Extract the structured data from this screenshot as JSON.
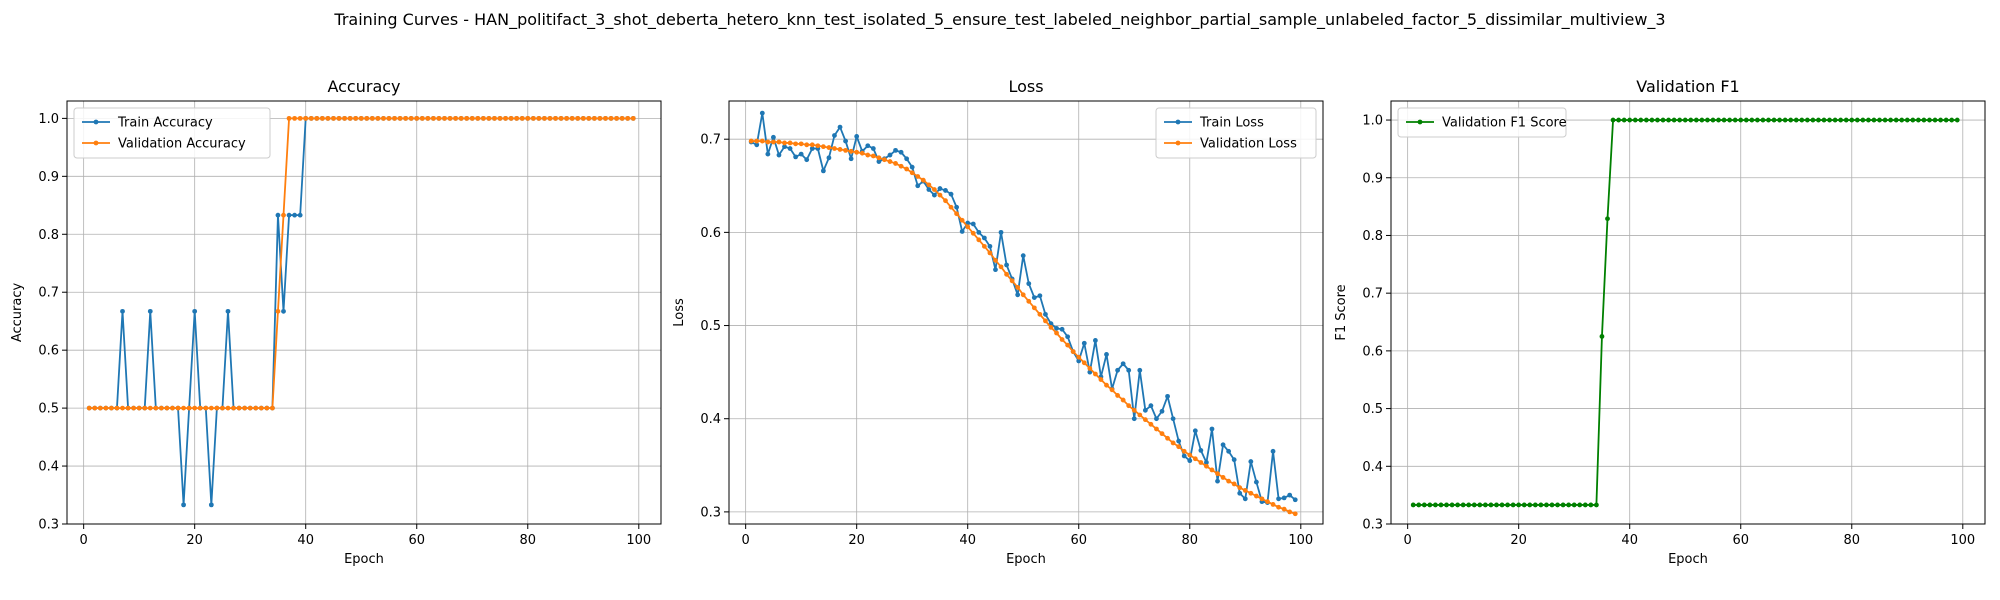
{
  "figure": {
    "title": "Training Curves - HAN_politifact_3_shot_deberta_hetero_knn_test_isolated_5_ensure_test_labeled_neighbor_partial_sample_unlabeled_factor_5_dissimilar_multiview_3"
  },
  "chart_data": [
    {
      "type": "line",
      "title": "Accuracy",
      "xlabel": "Epoch",
      "ylabel": "Accuracy",
      "xlim": [
        -3,
        104
      ],
      "ylim": [
        0.3,
        1.03
      ],
      "xticks": [
        0,
        20,
        40,
        60,
        80,
        100
      ],
      "yticks": [
        0.3,
        0.4,
        0.5,
        0.6,
        0.7,
        0.8,
        0.9,
        1.0
      ],
      "grid": true,
      "legend_loc": "upper left",
      "series": [
        {
          "name": "Train Accuracy",
          "color": "#1f77b4",
          "x": [
            1,
            2,
            3,
            4,
            5,
            6,
            7,
            8,
            9,
            10,
            11,
            12,
            13,
            14,
            15,
            16,
            17,
            18,
            19,
            20,
            21,
            22,
            23,
            24,
            25,
            26,
            27,
            28,
            29,
            30,
            31,
            32,
            33,
            34,
            35,
            36,
            37,
            38,
            39,
            40,
            41,
            42,
            43,
            44,
            45,
            46,
            47,
            48,
            49,
            50,
            51,
            52,
            53,
            54,
            55,
            56,
            57,
            58,
            59,
            60,
            61,
            62,
            63,
            64,
            65,
            66,
            67,
            68,
            69,
            70,
            71,
            72,
            73,
            74,
            75,
            76,
            77,
            78,
            79,
            80,
            81,
            82,
            83,
            84,
            85,
            86,
            87,
            88,
            89,
            90,
            91,
            92,
            93,
            94,
            95,
            96,
            97,
            98,
            99
          ],
          "values": [
            0.5,
            0.5,
            0.5,
            0.5,
            0.5,
            0.5,
            0.667,
            0.5,
            0.5,
            0.5,
            0.5,
            0.667,
            0.5,
            0.5,
            0.5,
            0.5,
            0.5,
            0.333,
            0.5,
            0.667,
            0.5,
            0.5,
            0.333,
            0.5,
            0.5,
            0.667,
            0.5,
            0.5,
            0.5,
            0.5,
            0.5,
            0.5,
            0.5,
            0.5,
            0.833,
            0.667,
            0.833,
            0.833,
            0.833,
            1.0,
            1.0,
            1.0,
            1.0,
            1.0,
            1.0,
            1.0,
            1.0,
            1.0,
            1.0,
            1.0,
            1.0,
            1.0,
            1.0,
            1.0,
            1.0,
            1.0,
            1.0,
            1.0,
            1.0,
            1.0,
            1.0,
            1.0,
            1.0,
            1.0,
            1.0,
            1.0,
            1.0,
            1.0,
            1.0,
            1.0,
            1.0,
            1.0,
            1.0,
            1.0,
            1.0,
            1.0,
            1.0,
            1.0,
            1.0,
            1.0,
            1.0,
            1.0,
            1.0,
            1.0,
            1.0,
            1.0,
            1.0,
            1.0,
            1.0,
            1.0,
            1.0,
            1.0,
            1.0,
            1.0,
            1.0,
            1.0,
            1.0,
            1.0,
            1.0
          ]
        },
        {
          "name": "Validation Accuracy",
          "color": "#ff7f0e",
          "x": [
            1,
            2,
            3,
            4,
            5,
            6,
            7,
            8,
            9,
            10,
            11,
            12,
            13,
            14,
            15,
            16,
            17,
            18,
            19,
            20,
            21,
            22,
            23,
            24,
            25,
            26,
            27,
            28,
            29,
            30,
            31,
            32,
            33,
            34,
            35,
            36,
            37,
            38,
            39,
            40,
            41,
            42,
            43,
            44,
            45,
            46,
            47,
            48,
            49,
            50,
            51,
            52,
            53,
            54,
            55,
            56,
            57,
            58,
            59,
            60,
            61,
            62,
            63,
            64,
            65,
            66,
            67,
            68,
            69,
            70,
            71,
            72,
            73,
            74,
            75,
            76,
            77,
            78,
            79,
            80,
            81,
            82,
            83,
            84,
            85,
            86,
            87,
            88,
            89,
            90,
            91,
            92,
            93,
            94,
            95,
            96,
            97,
            98,
            99
          ],
          "values": [
            0.5,
            0.5,
            0.5,
            0.5,
            0.5,
            0.5,
            0.5,
            0.5,
            0.5,
            0.5,
            0.5,
            0.5,
            0.5,
            0.5,
            0.5,
            0.5,
            0.5,
            0.5,
            0.5,
            0.5,
            0.5,
            0.5,
            0.5,
            0.5,
            0.5,
            0.5,
            0.5,
            0.5,
            0.5,
            0.5,
            0.5,
            0.5,
            0.5,
            0.5,
            0.667,
            0.833,
            1.0,
            1.0,
            1.0,
            1.0,
            1.0,
            1.0,
            1.0,
            1.0,
            1.0,
            1.0,
            1.0,
            1.0,
            1.0,
            1.0,
            1.0,
            1.0,
            1.0,
            1.0,
            1.0,
            1.0,
            1.0,
            1.0,
            1.0,
            1.0,
            1.0,
            1.0,
            1.0,
            1.0,
            1.0,
            1.0,
            1.0,
            1.0,
            1.0,
            1.0,
            1.0,
            1.0,
            1.0,
            1.0,
            1.0,
            1.0,
            1.0,
            1.0,
            1.0,
            1.0,
            1.0,
            1.0,
            1.0,
            1.0,
            1.0,
            1.0,
            1.0,
            1.0,
            1.0,
            1.0,
            1.0,
            1.0,
            1.0,
            1.0,
            1.0,
            1.0,
            1.0,
            1.0,
            1.0
          ]
        }
      ]
    },
    {
      "type": "line",
      "title": "Loss",
      "xlabel": "Epoch",
      "ylabel": "Loss",
      "xlim": [
        -3,
        104
      ],
      "ylim": [
        0.287,
        0.741
      ],
      "xticks": [
        0,
        20,
        40,
        60,
        80,
        100
      ],
      "yticks": [
        0.3,
        0.4,
        0.5,
        0.6,
        0.7
      ],
      "grid": true,
      "legend_loc": "upper right",
      "series": [
        {
          "name": "Train Loss",
          "color": "#1f77b4",
          "x": [
            1,
            2,
            3,
            4,
            5,
            6,
            7,
            8,
            9,
            10,
            11,
            12,
            13,
            14,
            15,
            16,
            17,
            18,
            19,
            20,
            21,
            22,
            23,
            24,
            25,
            26,
            27,
            28,
            29,
            30,
            31,
            32,
            33,
            34,
            35,
            36,
            37,
            38,
            39,
            40,
            41,
            42,
            43,
            44,
            45,
            46,
            47,
            48,
            49,
            50,
            51,
            52,
            53,
            54,
            55,
            56,
            57,
            58,
            59,
            60,
            61,
            62,
            63,
            64,
            65,
            66,
            67,
            68,
            69,
            70,
            71,
            72,
            73,
            74,
            75,
            76,
            77,
            78,
            79,
            80,
            81,
            82,
            83,
            84,
            85,
            86,
            87,
            88,
            89,
            90,
            91,
            92,
            93,
            94,
            95,
            96,
            97,
            98,
            99
          ],
          "values": [
            0.697,
            0.694,
            0.728,
            0.684,
            0.702,
            0.683,
            0.692,
            0.69,
            0.681,
            0.684,
            0.678,
            0.69,
            0.69,
            0.666,
            0.68,
            0.704,
            0.713,
            0.698,
            0.679,
            0.703,
            0.687,
            0.693,
            0.69,
            0.676,
            0.679,
            0.683,
            0.688,
            0.686,
            0.679,
            0.67,
            0.65,
            0.655,
            0.646,
            0.64,
            0.647,
            0.645,
            0.641,
            0.627,
            0.601,
            0.61,
            0.609,
            0.6,
            0.594,
            0.585,
            0.56,
            0.6,
            0.565,
            0.55,
            0.533,
            0.575,
            0.545,
            0.53,
            0.532,
            0.512,
            0.502,
            0.497,
            0.496,
            0.488,
            0.472,
            0.462,
            0.481,
            0.45,
            0.484,
            0.445,
            0.469,
            0.432,
            0.452,
            0.459,
            0.452,
            0.4,
            0.452,
            0.409,
            0.414,
            0.4,
            0.408,
            0.424,
            0.4,
            0.376,
            0.36,
            0.355,
            0.387,
            0.366,
            0.353,
            0.389,
            0.333,
            0.372,
            0.365,
            0.356,
            0.32,
            0.314,
            0.354,
            0.332,
            0.311,
            0.31,
            0.365,
            0.314,
            0.315,
            0.318,
            0.313
          ]
        },
        {
          "name": "Validation Loss",
          "color": "#ff7f0e",
          "x": [
            1,
            2,
            3,
            4,
            5,
            6,
            7,
            8,
            9,
            10,
            11,
            12,
            13,
            14,
            15,
            16,
            17,
            18,
            19,
            20,
            21,
            22,
            23,
            24,
            25,
            26,
            27,
            28,
            29,
            30,
            31,
            32,
            33,
            34,
            35,
            36,
            37,
            38,
            39,
            40,
            41,
            42,
            43,
            44,
            45,
            46,
            47,
            48,
            49,
            50,
            51,
            52,
            53,
            54,
            55,
            56,
            57,
            58,
            59,
            60,
            61,
            62,
            63,
            64,
            65,
            66,
            67,
            68,
            69,
            70,
            71,
            72,
            73,
            74,
            75,
            76,
            77,
            78,
            79,
            80,
            81,
            82,
            83,
            84,
            85,
            86,
            87,
            88,
            89,
            90,
            91,
            92,
            93,
            94,
            95,
            96,
            97,
            98,
            99
          ],
          "values": [
            0.698,
            0.698,
            0.698,
            0.697,
            0.697,
            0.697,
            0.696,
            0.696,
            0.695,
            0.695,
            0.694,
            0.694,
            0.693,
            0.692,
            0.691,
            0.69,
            0.689,
            0.688,
            0.687,
            0.686,
            0.685,
            0.683,
            0.682,
            0.68,
            0.678,
            0.676,
            0.674,
            0.671,
            0.668,
            0.664,
            0.66,
            0.656,
            0.651,
            0.646,
            0.64,
            0.634,
            0.627,
            0.62,
            0.613,
            0.606,
            0.599,
            0.592,
            0.585,
            0.578,
            0.57,
            0.563,
            0.555,
            0.548,
            0.541,
            0.533,
            0.526,
            0.519,
            0.512,
            0.505,
            0.498,
            0.492,
            0.485,
            0.479,
            0.472,
            0.466,
            0.46,
            0.454,
            0.448,
            0.442,
            0.436,
            0.431,
            0.425,
            0.42,
            0.414,
            0.409,
            0.404,
            0.399,
            0.394,
            0.389,
            0.384,
            0.379,
            0.374,
            0.37,
            0.365,
            0.361,
            0.357,
            0.353,
            0.349,
            0.345,
            0.341,
            0.337,
            0.333,
            0.33,
            0.326,
            0.323,
            0.32,
            0.317,
            0.314,
            0.311,
            0.308,
            0.305,
            0.303,
            0.3,
            0.298
          ]
        }
      ]
    },
    {
      "type": "line",
      "title": "Validation F1",
      "xlabel": "Epoch",
      "ylabel": "F1 Score",
      "xlim": [
        -3,
        104
      ],
      "ylim": [
        0.3,
        1.033
      ],
      "xticks": [
        0,
        20,
        40,
        60,
        80,
        100
      ],
      "yticks": [
        0.3,
        0.4,
        0.5,
        0.6,
        0.7,
        0.8,
        0.9,
        1.0
      ],
      "grid": true,
      "legend_loc": "upper left",
      "series": [
        {
          "name": "Validation F1 Score",
          "color": "#008000",
          "x": [
            1,
            2,
            3,
            4,
            5,
            6,
            7,
            8,
            9,
            10,
            11,
            12,
            13,
            14,
            15,
            16,
            17,
            18,
            19,
            20,
            21,
            22,
            23,
            24,
            25,
            26,
            27,
            28,
            29,
            30,
            31,
            32,
            33,
            34,
            35,
            36,
            37,
            38,
            39,
            40,
            41,
            42,
            43,
            44,
            45,
            46,
            47,
            48,
            49,
            50,
            51,
            52,
            53,
            54,
            55,
            56,
            57,
            58,
            59,
            60,
            61,
            62,
            63,
            64,
            65,
            66,
            67,
            68,
            69,
            70,
            71,
            72,
            73,
            74,
            75,
            76,
            77,
            78,
            79,
            80,
            81,
            82,
            83,
            84,
            85,
            86,
            87,
            88,
            89,
            90,
            91,
            92,
            93,
            94,
            95,
            96,
            97,
            98,
            99
          ],
          "values": [
            0.333,
            0.333,
            0.333,
            0.333,
            0.333,
            0.333,
            0.333,
            0.333,
            0.333,
            0.333,
            0.333,
            0.333,
            0.333,
            0.333,
            0.333,
            0.333,
            0.333,
            0.333,
            0.333,
            0.333,
            0.333,
            0.333,
            0.333,
            0.333,
            0.333,
            0.333,
            0.333,
            0.333,
            0.333,
            0.333,
            0.333,
            0.333,
            0.333,
            0.333,
            0.625,
            0.829,
            1.0,
            1.0,
            1.0,
            1.0,
            1.0,
            1.0,
            1.0,
            1.0,
            1.0,
            1.0,
            1.0,
            1.0,
            1.0,
            1.0,
            1.0,
            1.0,
            1.0,
            1.0,
            1.0,
            1.0,
            1.0,
            1.0,
            1.0,
            1.0,
            1.0,
            1.0,
            1.0,
            1.0,
            1.0,
            1.0,
            1.0,
            1.0,
            1.0,
            1.0,
            1.0,
            1.0,
            1.0,
            1.0,
            1.0,
            1.0,
            1.0,
            1.0,
            1.0,
            1.0,
            1.0,
            1.0,
            1.0,
            1.0,
            1.0,
            1.0,
            1.0,
            1.0,
            1.0,
            1.0,
            1.0,
            1.0,
            1.0,
            1.0,
            1.0,
            1.0,
            1.0,
            1.0,
            1.0
          ]
        }
      ]
    }
  ]
}
